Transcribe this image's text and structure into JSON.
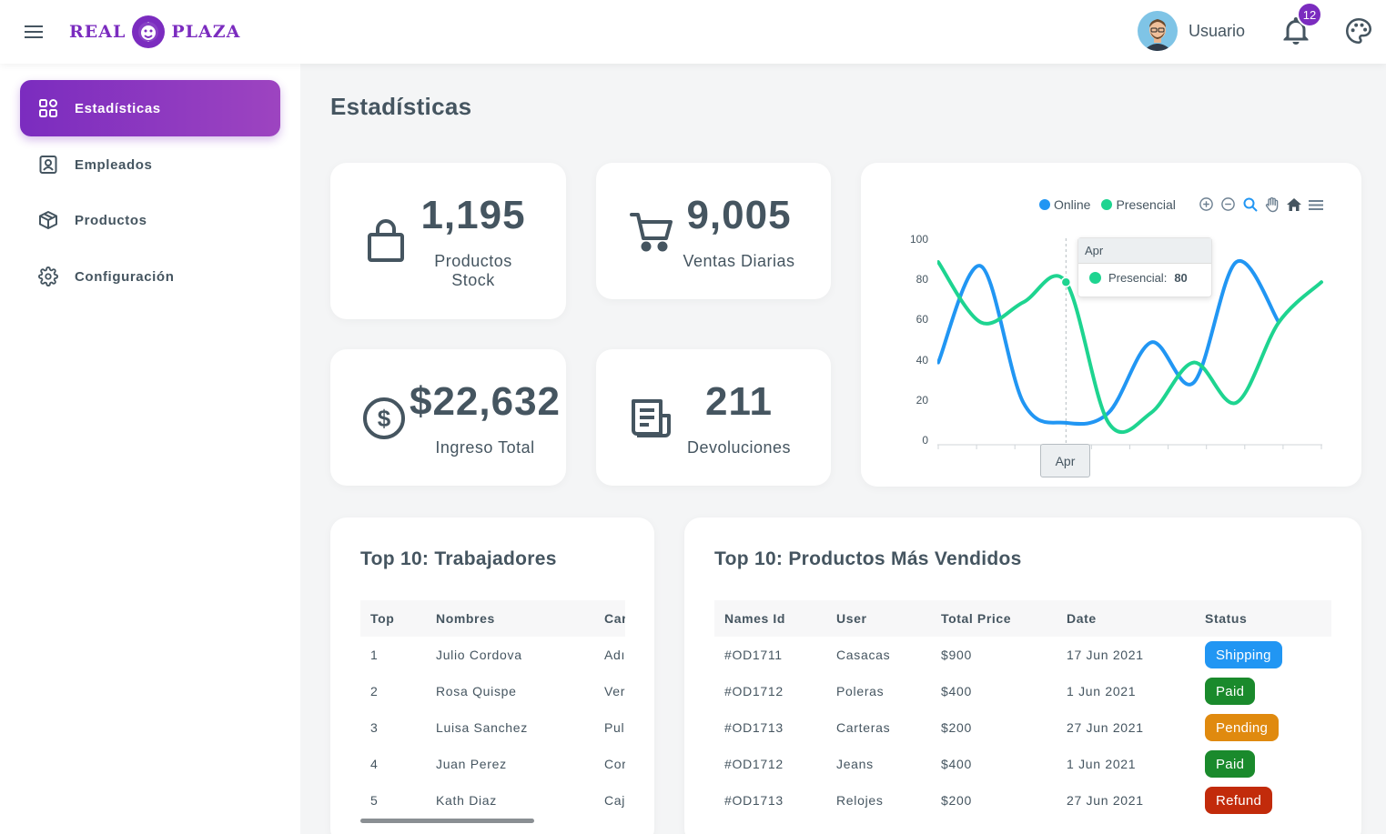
{
  "brand": {
    "left": "REAL",
    "right": "PLAZA"
  },
  "header": {
    "user_name": "Usuario",
    "notifications": "12"
  },
  "sidebar": {
    "items": [
      {
        "label": "Estadísticas",
        "icon": "dashboard-grid-icon",
        "active": true
      },
      {
        "label": "Empleados",
        "icon": "employee-badge-icon"
      },
      {
        "label": "Productos",
        "icon": "box-icon"
      },
      {
        "label": "Configuración",
        "icon": "gear-icon"
      }
    ]
  },
  "page": {
    "title": "Estadísticas"
  },
  "stats": [
    {
      "value": "1,195",
      "label_line1": "Productos",
      "label_line2": "Stock",
      "icon": "shopping-bag-icon"
    },
    {
      "value": "9,005",
      "label_line1": "Ventas Diarias",
      "icon": "cart-icon"
    },
    {
      "value": "$22,632",
      "label_line1": "Ingreso Total",
      "icon": "dollar-circle-icon"
    },
    {
      "value": "211",
      "label_line1": "Devoluciones",
      "icon": "newspaper-icon"
    }
  ],
  "chart": {
    "legend": [
      "Online",
      "Presencial"
    ],
    "tooltip": {
      "title": "Apr",
      "series": "Presencial:",
      "value": "80"
    },
    "xtooltip": "Apr",
    "y_ticks": [
      "100",
      "80",
      "60",
      "40",
      "20",
      "0"
    ],
    "colors": {
      "online": "#2196f3",
      "presencial": "#1ed490"
    }
  },
  "chart_data": {
    "type": "line",
    "x": [
      "",
      "",
      "",
      "Apr",
      "",
      "",
      "",
      "",
      "",
      ""
    ],
    "ylim": [
      0,
      100
    ],
    "legend_position": "top-right",
    "series": [
      {
        "name": "Online",
        "values": [
          40,
          88,
          20,
          10,
          15,
          50,
          30,
          90,
          60,
          null
        ]
      },
      {
        "name": "Presencial",
        "values": [
          90,
          60,
          70,
          80,
          10,
          15,
          40,
          20,
          60,
          80
        ]
      }
    ]
  },
  "workers": {
    "title": "Top 10: Trabajadores",
    "headers": [
      "Top",
      "Nombres",
      "Car"
    ],
    "rows": [
      [
        "1",
        "Julio Cordova",
        "Adı"
      ],
      [
        "2",
        "Rosa Quispe",
        "Ver"
      ],
      [
        "3",
        "Luisa Sanchez",
        "Pul"
      ],
      [
        "4",
        "Juan Perez",
        "Cor"
      ],
      [
        "5",
        "Kath Diaz",
        "Caj"
      ]
    ]
  },
  "products": {
    "title": "Top 10: Productos Más Vendidos",
    "headers": [
      "Names Id",
      "User",
      "Total Price",
      "Date",
      "Status"
    ],
    "rows": [
      {
        "id": "#OD1711",
        "user": "Casacas",
        "price": "$900",
        "date": "17 Jun 2021",
        "status": "Shipping",
        "color": "#2196f3"
      },
      {
        "id": "#OD1712",
        "user": "Poleras",
        "price": "$400",
        "date": "1 Jun 2021",
        "status": "Paid",
        "color": "#1a8a2c"
      },
      {
        "id": "#OD1713",
        "user": "Carteras",
        "price": "$200",
        "date": "27 Jun 2021",
        "status": "Pending",
        "color": "#e08a0f"
      },
      {
        "id": "#OD1712",
        "user": "Jeans",
        "price": "$400",
        "date": "1 Jun 2021",
        "status": "Paid",
        "color": "#1a8a2c"
      },
      {
        "id": "#OD1713",
        "user": "Relojes",
        "price": "$200",
        "date": "27 Jun 2021",
        "status": "Refund",
        "color": "#c22b0b"
      }
    ]
  }
}
